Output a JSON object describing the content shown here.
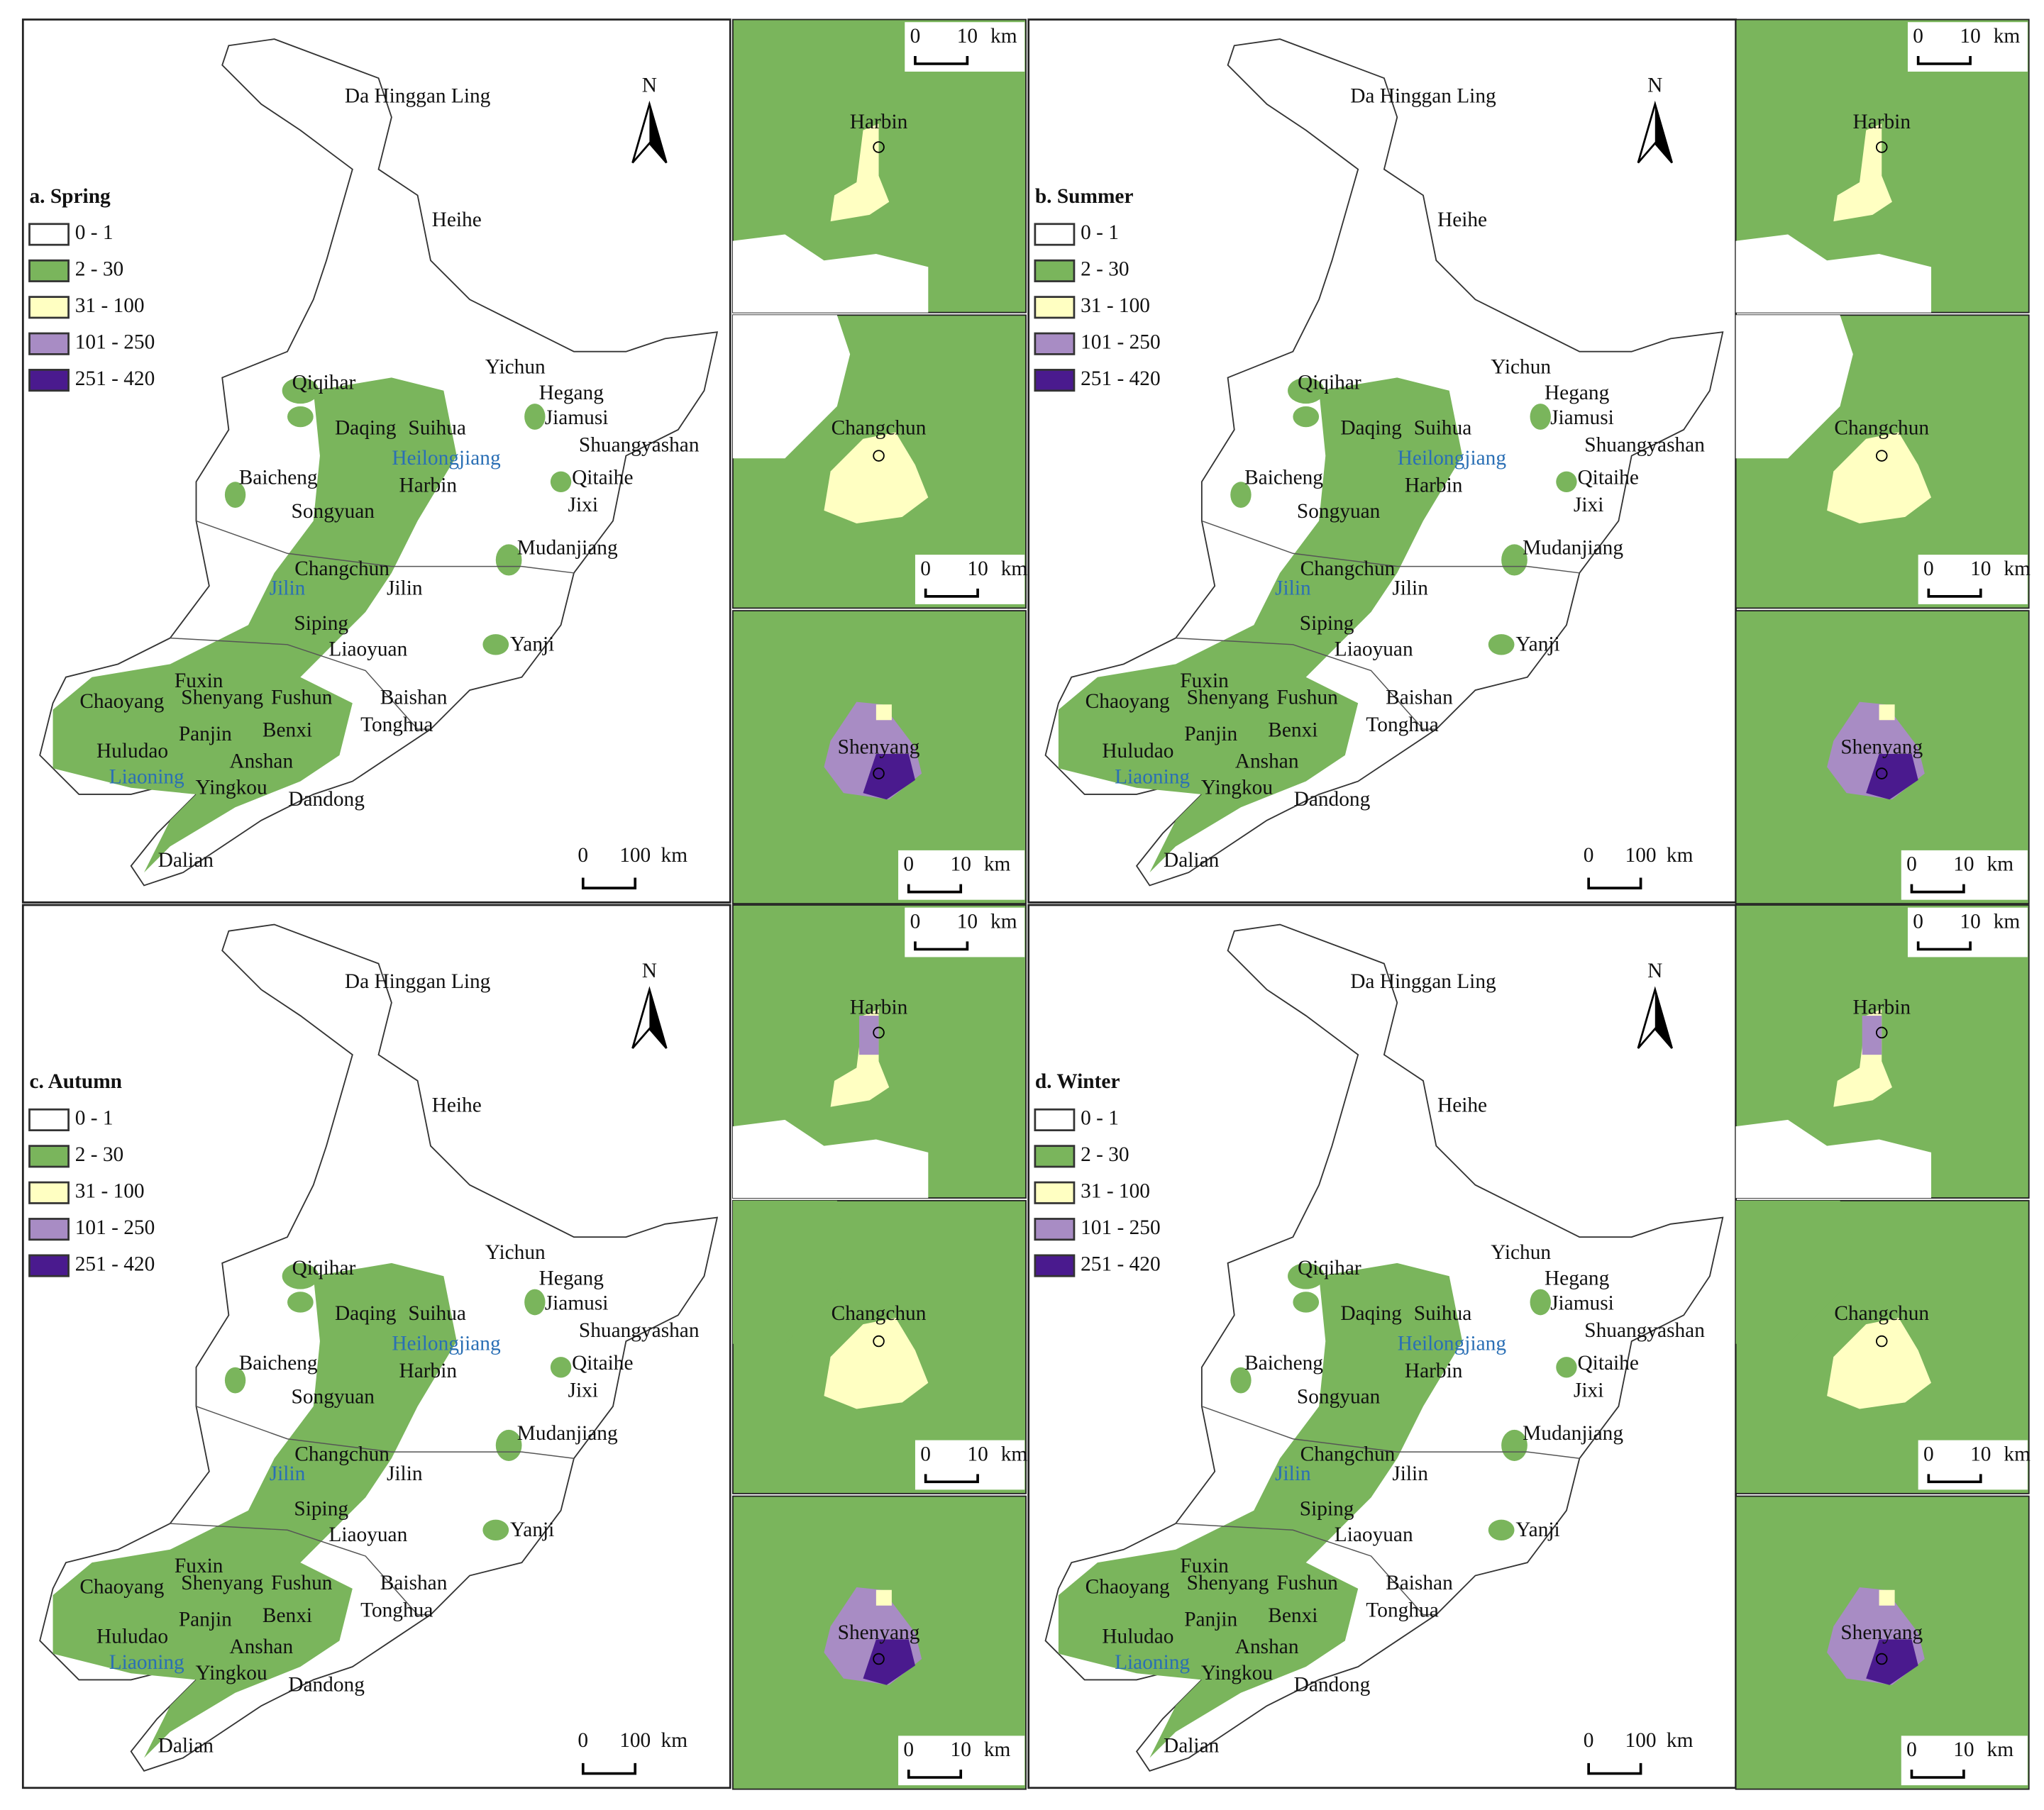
{
  "panels": [
    {
      "title": "a. Spring"
    },
    {
      "title": "b. Summer"
    },
    {
      "title": "c. Autumn"
    },
    {
      "title": "d. Winter"
    }
  ],
  "legend": [
    {
      "label": "0 - 1",
      "color": "#ffffff"
    },
    {
      "label": "2 - 30",
      "color": "#7ab55c"
    },
    {
      "label": "31 - 100",
      "color": "#ffffc2"
    },
    {
      "label": "101 - 250",
      "color": "#a88cc4"
    },
    {
      "label": "251 - 420",
      "color": "#4a1a8e"
    }
  ],
  "cities": [
    "Da Hinggan Ling",
    "Heihe",
    "Yichun",
    "Qiqihar",
    "Hegang",
    "Jiamusi",
    "Daqing",
    "Suihua",
    "Shuangyashan",
    "Baicheng",
    "Harbin",
    "Qitaihe",
    "Songyuan",
    "Jixi",
    "Mudanjiang",
    "Changchun",
    "Jilin",
    "Siping",
    "Liaoyuan",
    "Yanji",
    "Fuxin",
    "Chaoyang",
    "Shenyang",
    "Fushun",
    "Baishan",
    "Tonghua",
    "Panjin",
    "Benxi",
    "Huludao",
    "Anshan",
    "Yingkou",
    "Dandong",
    "Dalian"
  ],
  "provinces": [
    "Heilongjiang",
    "Jilin",
    "Liaoning"
  ],
  "north": "N",
  "scale_main": {
    "ticks": [
      "0",
      "100"
    ],
    "unit": "km"
  },
  "scale_inset": {
    "ticks": [
      "0",
      "10"
    ],
    "unit": "km"
  },
  "insets": [
    "Harbin",
    "Changchun",
    "Shenyang"
  ]
}
